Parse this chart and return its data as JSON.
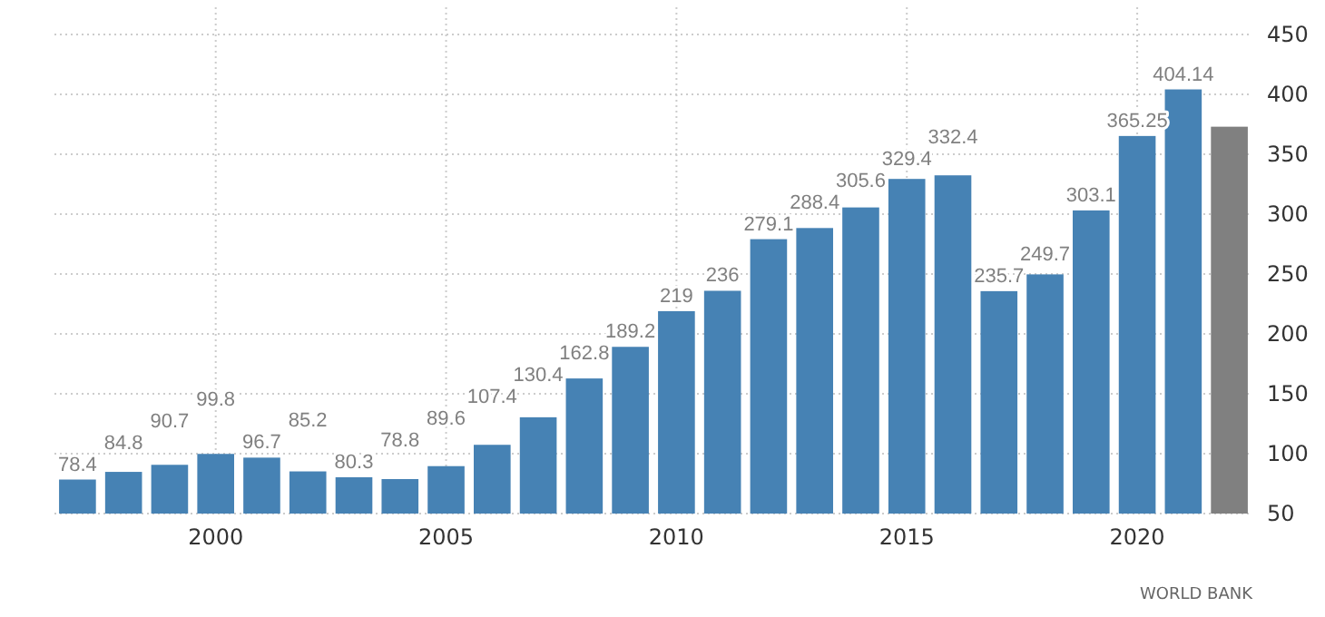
{
  "chart_data": {
    "type": "bar",
    "categories": [
      null,
      null,
      null,
      "2000",
      null,
      null,
      null,
      null,
      "2005",
      null,
      null,
      null,
      null,
      "2010",
      null,
      null,
      null,
      null,
      "2015",
      null,
      null,
      null,
      null,
      "2020",
      null,
      null
    ],
    "values": [
      78.4,
      84.8,
      90.7,
      99.8,
      96.7,
      85.2,
      80.3,
      78.8,
      89.6,
      107.4,
      130.4,
      162.8,
      189.2,
      219,
      236,
      279.1,
      288.4,
      305.6,
      329.4,
      332.4,
      235.7,
      249.7,
      303.1,
      365.25,
      404.14,
      373
    ],
    "value_labels": [
      "78.4",
      "84.8",
      "90.7",
      "99.8",
      "96.7",
      "85.2",
      "80.3",
      "78.8",
      "89.6",
      "107.4",
      "130.4",
      "162.8",
      "189.2",
      "219",
      "236",
      "279.1",
      "288.4",
      "305.6",
      "329.4",
      "332.4",
      "235.7",
      "249.7",
      "303.1",
      "365.25",
      "404.14",
      null
    ],
    "colors": [
      "#4682b4",
      "#4682b4",
      "#4682b4",
      "#4682b4",
      "#4682b4",
      "#4682b4",
      "#4682b4",
      "#4682b4",
      "#4682b4",
      "#4682b4",
      "#4682b4",
      "#4682b4",
      "#4682b4",
      "#4682b4",
      "#4682b4",
      "#4682b4",
      "#4682b4",
      "#4682b4",
      "#4682b4",
      "#4682b4",
      "#4682b4",
      "#4682b4",
      "#4682b4",
      "#4682b4",
      "#4682b4",
      "#808080"
    ],
    "ylim": [
      50,
      450
    ],
    "yticks": [
      50,
      100,
      150,
      200,
      250,
      300,
      350,
      400,
      450
    ],
    "grid": true,
    "annotations": [
      "WORLD BANK"
    ]
  }
}
